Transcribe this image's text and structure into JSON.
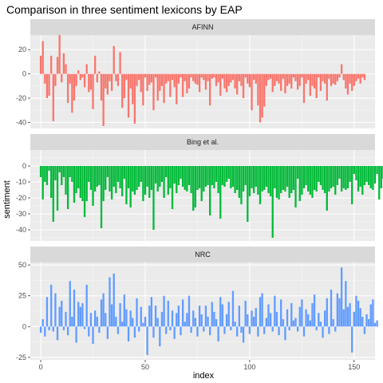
{
  "chart_data": {
    "type": "bar",
    "title": "Comparison in three sentiment lexicons by EAP",
    "xlabel": "index",
    "ylabel": "sentiment",
    "x_ticks": [
      0,
      50,
      100,
      150
    ],
    "xlim": [
      -5,
      160
    ],
    "grid": true,
    "legend": "none",
    "panels": [
      {
        "name": "AFINN",
        "color": "#F8766D",
        "ylim": [
          -45,
          32
        ],
        "y_ticks": [
          20,
          0,
          -20,
          -40
        ],
        "values": [
          15,
          27,
          -8,
          -20,
          -18,
          15,
          -39,
          -10,
          14,
          32,
          -7,
          17,
          8,
          -24,
          -8,
          -32,
          -22,
          -10,
          3,
          -5,
          -3,
          -11,
          8,
          -15,
          -13,
          -29,
          15,
          -7,
          2,
          -22,
          -43,
          -12,
          -17,
          -6,
          -14,
          23,
          -6,
          -10,
          18,
          -28,
          -20,
          -5,
          -36,
          -12,
          -25,
          -41,
          -10,
          -5,
          -15,
          -26,
          -3,
          -14,
          -9,
          -7,
          -30,
          -3,
          -22,
          -14,
          -10,
          -24,
          -8,
          -6,
          -19,
          -5,
          -11,
          -25,
          -8,
          -3,
          -19,
          -6,
          -16,
          -12,
          -3,
          -6,
          -8,
          -9,
          -15,
          -3,
          -5,
          -13,
          -6,
          -26,
          -4,
          -3,
          -10,
          -7,
          -18,
          -4,
          -12,
          -15,
          -10,
          -7,
          -5,
          -12,
          -17,
          -6,
          -10,
          -20,
          -3,
          -8,
          -11,
          -30,
          -5,
          -8,
          -26,
          -40,
          -36,
          -27,
          -10,
          -5,
          -4,
          -15,
          -10,
          -6,
          -8,
          -14,
          -4,
          -16,
          -10,
          -8,
          -12,
          -3,
          -6,
          -13,
          -10,
          -3,
          -24,
          -8,
          -5,
          -18,
          -10,
          -12,
          -20,
          -3,
          -14,
          -6,
          -8,
          -22,
          -4,
          -10,
          -8,
          -9,
          -6,
          -3,
          8,
          -5,
          -12,
          -17,
          -8,
          -14,
          -10,
          -6,
          -4,
          -8,
          -3,
          -5
        ]
      },
      {
        "name": "Bing et al.",
        "color": "#00BA38",
        "ylim": [
          -47,
          10
        ],
        "y_ticks": [
          0,
          -10,
          -20,
          -30,
          -40
        ],
        "values": [
          -7,
          -21,
          -10,
          -12,
          -3,
          -20,
          -35,
          -9,
          -28,
          -4,
          -12,
          -7,
          -18,
          -27,
          -7,
          -10,
          -23,
          -17,
          -14,
          -20,
          -22,
          -32,
          -22,
          -10,
          -15,
          -25,
          -16,
          -13,
          -12,
          -39,
          -22,
          -15,
          -7,
          -16,
          -21,
          -13,
          -17,
          -10,
          -14,
          -19,
          -8,
          -24,
          -14,
          -26,
          -16,
          -18,
          -15,
          -13,
          -10,
          -22,
          -18,
          -13,
          -20,
          -15,
          -40,
          -11,
          -16,
          -13,
          -10,
          -20,
          -7,
          -18,
          -14,
          -27,
          -11,
          -17,
          -12,
          -8,
          -13,
          -15,
          -16,
          -12,
          -17,
          -28,
          -26,
          -15,
          -14,
          -22,
          -16,
          -13,
          -12,
          -31,
          -12,
          -14,
          -10,
          -17,
          -33,
          -12,
          -13,
          -10,
          -8,
          -14,
          -13,
          -17,
          -15,
          -20,
          -24,
          -16,
          -12,
          -35,
          -19,
          -14,
          -17,
          -13,
          -18,
          -24,
          -16,
          -15,
          -13,
          -17,
          -19,
          -45,
          -14,
          -20,
          -21,
          -17,
          -15,
          -16,
          -13,
          -20,
          -17,
          -15,
          -26,
          -8,
          -22,
          -18,
          -14,
          -12,
          -16,
          -18,
          -20,
          -15,
          -16,
          -10,
          -12,
          -15,
          -17,
          -28,
          -16,
          -14,
          -13,
          -18,
          -12,
          -8,
          -16,
          -14,
          -15,
          -14,
          -10,
          -24,
          -5,
          -9,
          -16,
          -13,
          -18,
          -12,
          -10,
          -12,
          -14,
          -15,
          -11,
          -5,
          -21,
          -14,
          -8,
          -10,
          -15,
          -14
        ]
      },
      {
        "name": "NRC",
        "color": "#619CFF",
        "ylim": [
          -27,
          52
        ],
        "y_ticks": [
          50,
          25,
          0,
          -25
        ],
        "values": [
          -5,
          6,
          -8,
          24,
          -3,
          34,
          -4,
          27,
          -11,
          16,
          21,
          -3,
          12,
          -7,
          37,
          8,
          30,
          -13,
          20,
          16,
          19,
          -2,
          34,
          -8,
          11,
          -14,
          13,
          8,
          -5,
          22,
          27,
          11,
          -10,
          40,
          18,
          43,
          8,
          -6,
          19,
          4,
          26,
          14,
          -12,
          13,
          7,
          -9,
          23,
          -4,
          16,
          3,
          8,
          -23,
          17,
          24,
          -9,
          17,
          7,
          -16,
          12,
          25,
          -6,
          21,
          -3,
          13,
          -10,
          11,
          17,
          -7,
          22,
          4,
          11,
          25,
          -5,
          13,
          7,
          -8,
          17,
          10,
          -4,
          17,
          8,
          -7,
          20,
          12,
          6,
          -12,
          24,
          18,
          -6,
          10,
          20,
          -3,
          29,
          4,
          -8,
          17,
          -5,
          -13,
          21,
          10,
          -6,
          13,
          8,
          15,
          -8,
          24,
          27,
          -6,
          7,
          18,
          11,
          -4,
          25,
          12,
          -7,
          22,
          6,
          -11,
          14,
          -3,
          19,
          5,
          7,
          -4,
          16,
          22,
          -8,
          14,
          10,
          5,
          19,
          26,
          -3,
          11,
          4,
          -9,
          13,
          23,
          -6,
          30,
          6,
          -4,
          27,
          23,
          48,
          14,
          37,
          16,
          19,
          -21,
          12,
          25,
          21,
          15,
          8,
          -6,
          10,
          6,
          18,
          22,
          3,
          5
        ]
      }
    ]
  }
}
